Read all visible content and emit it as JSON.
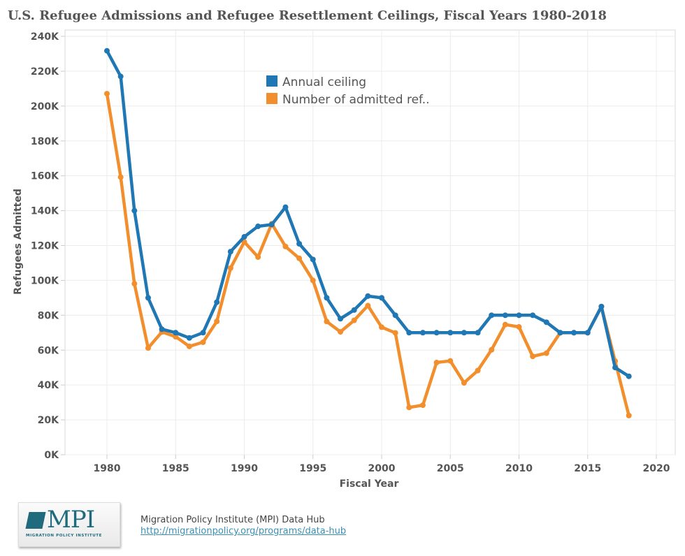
{
  "title": "U.S. Refugee Admissions and Refugee Resettlement Ceilings, Fiscal Years 1980-2018",
  "footer": {
    "logo_text": "MPI",
    "logo_subtext": "MIGRATION POLICY INSTITUTE",
    "source_name": "Migration Policy Institute (MPI) Data Hub",
    "source_link": "http://migrationpolicy.org/programs/data-hub"
  },
  "chart_data": {
    "type": "line",
    "title": "U.S. Refugee Admissions and Refugee Resettlement Ceilings, Fiscal Years 1980-2018",
    "xlabel": "Fiscal Year",
    "ylabel": "Refugees Admitted",
    "xlim": [
      1977,
      2021
    ],
    "ylim": [
      0,
      240000
    ],
    "x_ticks": [
      1980,
      1985,
      1990,
      1995,
      2000,
      2005,
      2010,
      2015,
      2020
    ],
    "x_tick_labels": [
      "1980",
      "1985",
      "1990",
      "1995",
      "2000",
      "2005",
      "2010",
      "2015",
      "2020"
    ],
    "y_ticks": [
      0,
      20000,
      40000,
      60000,
      80000,
      100000,
      120000,
      140000,
      160000,
      180000,
      200000,
      220000,
      240000
    ],
    "y_tick_labels": [
      "0K",
      "20K",
      "40K",
      "60K",
      "80K",
      "100K",
      "120K",
      "140K",
      "160K",
      "180K",
      "200K",
      "220K",
      "240K"
    ],
    "grid": true,
    "legend_position": "top-center",
    "x": [
      1980,
      1981,
      1982,
      1983,
      1984,
      1985,
      1986,
      1987,
      1988,
      1989,
      1990,
      1991,
      1992,
      1993,
      1994,
      1995,
      1996,
      1997,
      1998,
      1999,
      2000,
      2001,
      2002,
      2003,
      2004,
      2005,
      2006,
      2007,
      2008,
      2009,
      2010,
      2011,
      2012,
      2013,
      2014,
      2015,
      2016,
      2017,
      2018
    ],
    "series": [
      {
        "name": "Number of admitted ref..",
        "color": "#f28e2b",
        "values": [
          207116,
          159252,
          98096,
          61218,
          70393,
          67704,
          62146,
          64528,
          76483,
          107070,
          122066,
          113389,
          132531,
          119448,
          112682,
          99974,
          76403,
          70488,
          77080,
          85525,
          73147,
          69886,
          27131,
          28422,
          52873,
          53813,
          41223,
          48282,
          60191,
          74652,
          73311,
          56424,
          58238,
          69926,
          69987,
          69933,
          84994,
          53716,
          22491
        ]
      },
      {
        "name": "Annual ceiling",
        "color": "#1f77b4",
        "values": [
          231700,
          217000,
          140000,
          90000,
          72000,
          70000,
          67000,
          70000,
          87500,
          116500,
          125000,
          131000,
          132000,
          142000,
          121000,
          112000,
          90000,
          78000,
          83000,
          91000,
          90000,
          80000,
          70000,
          70000,
          70000,
          70000,
          70000,
          70000,
          80000,
          80000,
          80000,
          80000,
          76000,
          70000,
          70000,
          70000,
          85000,
          50000,
          45000
        ]
      }
    ],
    "legend": [
      {
        "label": "Annual ceiling",
        "color": "#1f77b4"
      },
      {
        "label": "Number of admitted ref..",
        "color": "#f28e2b"
      }
    ]
  }
}
